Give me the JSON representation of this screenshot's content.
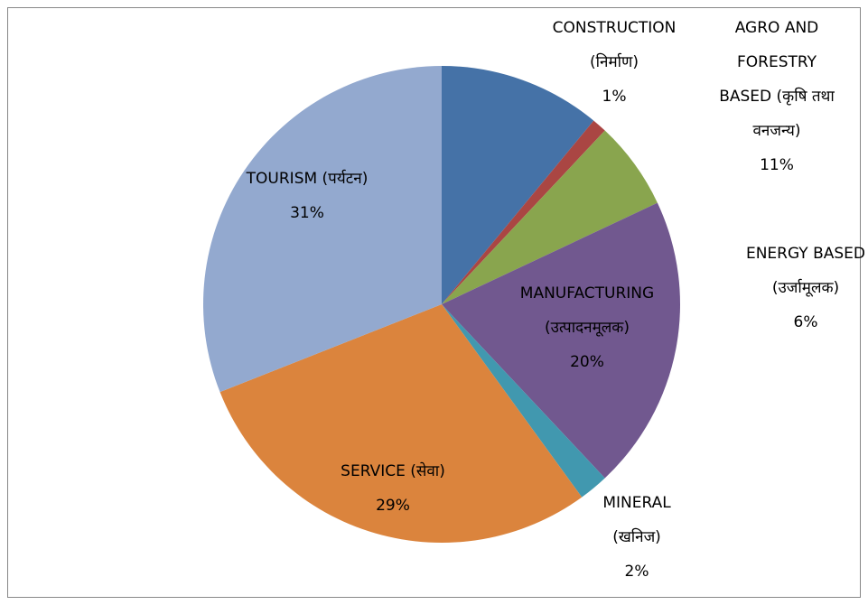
{
  "chart_data": {
    "type": "pie",
    "categories": [
      "AGRO AND FORESTRY BASED (कृषि तथा वनजन्य)",
      "CONSTRUCTION (निर्माण)",
      "ENERGY BASED (उर्जामूलक)",
      "MANUFACTURING (उत्पादनमूलक)",
      "MINERAL (खनिज)",
      "SERVICE (सेवा)",
      "TOURISM (पर्यटन)"
    ],
    "values": [
      11,
      1,
      6,
      20,
      2,
      29,
      31
    ],
    "value_labels": [
      "11%",
      "1%",
      "6%",
      "20%",
      "2%",
      "29%",
      "31%"
    ],
    "colors": [
      "#4572a7",
      "#aa4643",
      "#89a54e",
      "#71588f",
      "#4198af",
      "#db843d",
      "#93a9cf"
    ]
  }
}
